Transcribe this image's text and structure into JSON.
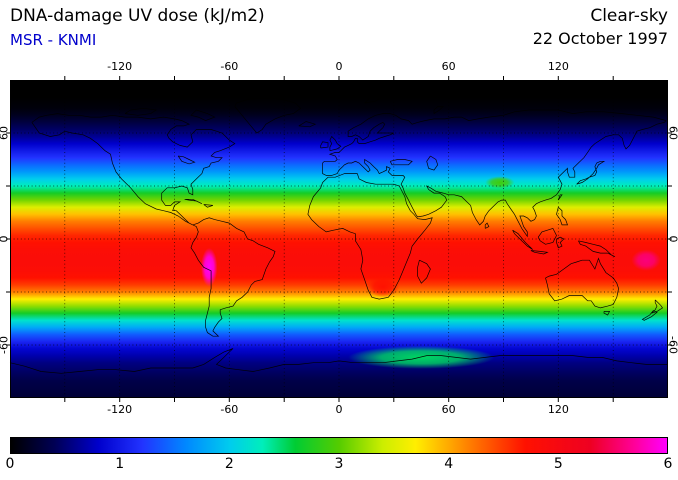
{
  "header": {
    "title": "DNA-damage UV dose (kJ/m2)",
    "source": "MSR - KNMI",
    "source_color": "#0000cc",
    "condition": "Clear-sky",
    "date": "22 October 1997"
  },
  "chart_data": {
    "type": "heatmap",
    "title": "DNA-damage UV dose (kJ/m2)",
    "subtitle": "MSR - KNMI",
    "condition": "Clear-sky",
    "date": "22 October 1997",
    "units": "kJ/m2",
    "projection": "equirectangular",
    "lon_range": [
      -180,
      180
    ],
    "lat_range": [
      -90,
      90
    ],
    "lon_tick_labels": [
      -120,
      -60,
      0,
      60,
      120
    ],
    "lat_tick_labels": [
      60,
      0,
      -60
    ],
    "grid_step_deg": 30,
    "grid": "dotted",
    "colorbar": {
      "min": 0,
      "max": 6,
      "tick_labels": [
        0,
        1,
        2,
        3,
        4,
        5,
        6
      ],
      "position": "bottom"
    },
    "colormap": [
      [
        0.0,
        "#000000"
      ],
      [
        0.4,
        "#000055"
      ],
      [
        0.8,
        "#0000cc"
      ],
      [
        1.2,
        "#2233ff"
      ],
      [
        1.6,
        "#0088ff"
      ],
      [
        2.0,
        "#00ccee"
      ],
      [
        2.3,
        "#00eebb"
      ],
      [
        2.6,
        "#00cc33"
      ],
      [
        3.0,
        "#55cc00"
      ],
      [
        3.4,
        "#ccee00"
      ],
      [
        3.7,
        "#ffee00"
      ],
      [
        4.0,
        "#ffaa00"
      ],
      [
        4.3,
        "#ff6600"
      ],
      [
        4.7,
        "#ff1100"
      ],
      [
        5.3,
        "#ee0022"
      ],
      [
        5.7,
        "#ff0099"
      ],
      [
        6.0,
        "#ff00ff"
      ]
    ],
    "zonal_profile": {
      "lat": [
        90,
        80,
        74,
        70,
        66,
        62,
        58,
        54,
        50,
        46,
        42,
        38,
        34,
        30,
        26,
        22,
        18,
        14,
        10,
        6,
        2,
        -2,
        -6,
        -10,
        -14,
        -18,
        -22,
        -26,
        -30,
        -34,
        -38,
        -42,
        -46,
        -50,
        -54,
        -58,
        -62,
        -66,
        -70,
        -75,
        -80,
        -85,
        -90
      ],
      "dose": [
        0,
        0,
        0.05,
        0.15,
        0.3,
        0.45,
        0.6,
        0.8,
        1.0,
        1.2,
        1.45,
        1.7,
        2.0,
        2.3,
        2.7,
        3.1,
        3.5,
        3.9,
        4.2,
        4.4,
        4.6,
        4.7,
        4.8,
        4.85,
        4.85,
        4.8,
        4.7,
        4.5,
        4.2,
        3.7,
        3.2,
        2.7,
        2.2,
        1.8,
        1.4,
        1.1,
        0.85,
        0.7,
        0.55,
        0.45,
        0.35,
        0.3,
        0.25
      ]
    },
    "anomalies": [
      {
        "name": "andes-high",
        "lon": -71,
        "lat": -16,
        "rx_deg": 4.5,
        "ry_deg": 11,
        "dose": 6.0
      },
      {
        "name": "west-pacific-high",
        "lon": 168,
        "lat": -12,
        "rx_deg": 8,
        "ry_deg": 6,
        "dose": 5.6
      },
      {
        "name": "southern-africa-high",
        "lon": 24,
        "lat": -27,
        "rx_deg": 9,
        "ry_deg": 6,
        "dose": 4.7
      },
      {
        "name": "tibet-high",
        "lon": 88,
        "lat": 32,
        "rx_deg": 8,
        "ry_deg": 3.5,
        "dose": 2.9
      },
      {
        "name": "antarctic-spring-high",
        "lon": 45,
        "lat": -67,
        "rx_deg": 40,
        "ry_deg": 6.5,
        "dose": 2.5
      }
    ]
  }
}
